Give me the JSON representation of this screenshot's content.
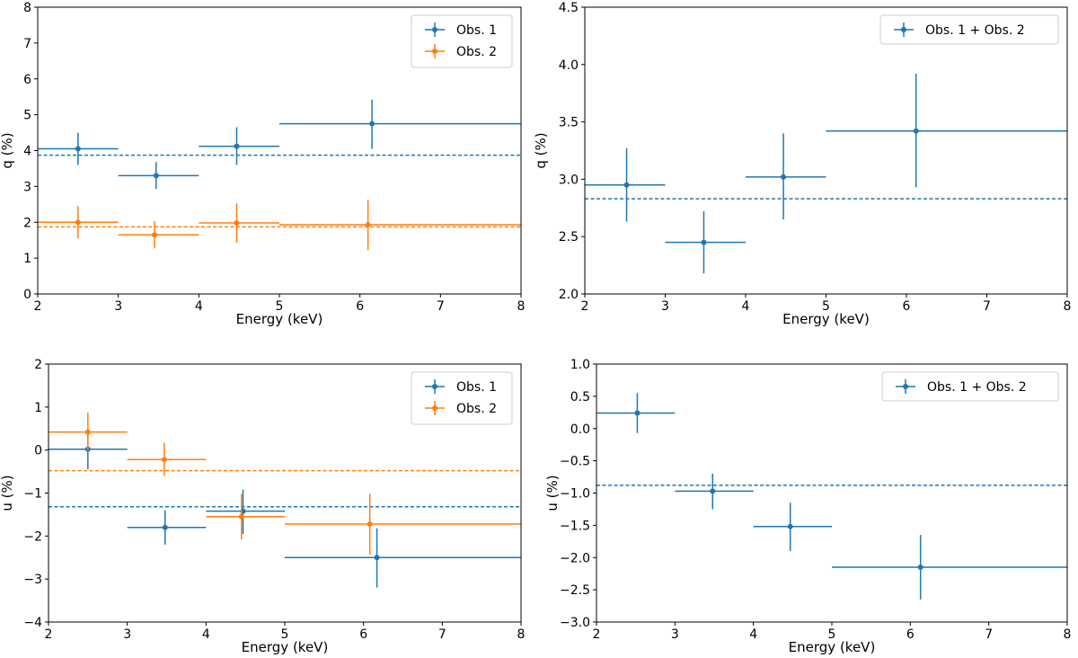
{
  "colors": {
    "obs1": "#1f77b4",
    "obs2": "#ff7f0e",
    "legend_border": "#cccccc"
  },
  "chart_data": [
    {
      "id": "q-separate",
      "type": "scatter",
      "xlabel": "Energy (keV)",
      "ylabel": "q (%)",
      "xlim": [
        2,
        8
      ],
      "ylim": [
        0,
        8
      ],
      "xticks": [
        2,
        3,
        4,
        5,
        6,
        7,
        8
      ],
      "yticks": [
        0,
        1,
        2,
        3,
        4,
        5,
        6,
        7,
        8
      ],
      "ytick_labels": [
        "0",
        "1",
        "2",
        "3",
        "4",
        "5",
        "6",
        "7",
        "8"
      ],
      "legend_position": "top-right",
      "series": [
        {
          "name": "Obs. 1",
          "color": "#1f77b4",
          "mean": 3.87,
          "points": [
            {
              "x": 2.5,
              "xlo": 2,
              "xhi": 3,
              "y": 4.05,
              "ylo": 3.6,
              "yhi": 4.5
            },
            {
              "x": 3.47,
              "xlo": 3,
              "xhi": 4,
              "y": 3.3,
              "ylo": 2.93,
              "yhi": 3.68
            },
            {
              "x": 4.47,
              "xlo": 4,
              "xhi": 5,
              "y": 4.12,
              "ylo": 3.6,
              "yhi": 4.65
            },
            {
              "x": 6.15,
              "xlo": 5,
              "xhi": 8,
              "y": 4.75,
              "ylo": 4.05,
              "yhi": 5.42
            }
          ]
        },
        {
          "name": "Obs. 2",
          "color": "#ff7f0e",
          "mean": 1.87,
          "points": [
            {
              "x": 2.5,
              "xlo": 2,
              "xhi": 3,
              "y": 2.0,
              "ylo": 1.55,
              "yhi": 2.45
            },
            {
              "x": 3.45,
              "xlo": 3,
              "xhi": 4,
              "y": 1.65,
              "ylo": 1.27,
              "yhi": 2.03
            },
            {
              "x": 4.47,
              "xlo": 4,
              "xhi": 5,
              "y": 1.98,
              "ylo": 1.43,
              "yhi": 2.53
            },
            {
              "x": 6.1,
              "xlo": 5,
              "xhi": 8,
              "y": 1.93,
              "ylo": 1.22,
              "yhi": 2.63
            }
          ]
        }
      ]
    },
    {
      "id": "q-combined",
      "type": "scatter",
      "xlabel": "Energy (keV)",
      "ylabel": "q (%)",
      "xlim": [
        2,
        8
      ],
      "ylim": [
        2.0,
        4.5
      ],
      "xticks": [
        2,
        3,
        4,
        5,
        6,
        7,
        8
      ],
      "yticks": [
        2.0,
        2.5,
        3.0,
        3.5,
        4.0,
        4.5
      ],
      "ytick_labels": [
        "2.0",
        "2.5",
        "3.0",
        "3.5",
        "4.0",
        "4.5"
      ],
      "legend_position": "top-right",
      "series": [
        {
          "name": "Obs. 1 + Obs. 2",
          "color": "#1f77b4",
          "mean": 2.83,
          "points": [
            {
              "x": 2.52,
              "xlo": 2,
              "xhi": 3,
              "y": 2.95,
              "ylo": 2.63,
              "yhi": 3.27
            },
            {
              "x": 3.48,
              "xlo": 3,
              "xhi": 4,
              "y": 2.45,
              "ylo": 2.18,
              "yhi": 2.72
            },
            {
              "x": 4.47,
              "xlo": 4,
              "xhi": 5,
              "y": 3.02,
              "ylo": 2.65,
              "yhi": 3.4
            },
            {
              "x": 6.12,
              "xlo": 5,
              "xhi": 8,
              "y": 3.42,
              "ylo": 2.93,
              "yhi": 3.92
            }
          ]
        }
      ]
    },
    {
      "id": "u-separate",
      "type": "scatter",
      "xlabel": "Energy (keV)",
      "ylabel": "u (%)",
      "xlim": [
        2,
        8
      ],
      "ylim": [
        -4,
        2
      ],
      "xticks": [
        2,
        3,
        4,
        5,
        6,
        7,
        8
      ],
      "yticks": [
        -4,
        -3,
        -2,
        -1,
        0,
        1,
        2
      ],
      "ytick_labels": [
        "−4",
        "−3",
        "−2",
        "−1",
        "0",
        "1",
        "2"
      ],
      "legend_position": "top-right",
      "series": [
        {
          "name": "Obs. 1",
          "color": "#1f77b4",
          "mean": -1.32,
          "points": [
            {
              "x": 2.5,
              "xlo": 2,
              "xhi": 3,
              "y": 0.02,
              "ylo": -0.45,
              "yhi": 0.5
            },
            {
              "x": 3.48,
              "xlo": 3,
              "xhi": 4,
              "y": -1.8,
              "ylo": -2.2,
              "yhi": -1.4
            },
            {
              "x": 4.47,
              "xlo": 4,
              "xhi": 5,
              "y": -1.42,
              "ylo": -1.95,
              "yhi": -0.92
            },
            {
              "x": 6.17,
              "xlo": 5,
              "xhi": 8,
              "y": -2.5,
              "ylo": -3.2,
              "yhi": -1.82
            }
          ]
        },
        {
          "name": "Obs. 2",
          "color": "#ff7f0e",
          "mean": -0.48,
          "points": [
            {
              "x": 2.5,
              "xlo": 2,
              "xhi": 3,
              "y": 0.42,
              "ylo": -0.02,
              "yhi": 0.87
            },
            {
              "x": 3.47,
              "xlo": 3,
              "xhi": 4,
              "y": -0.22,
              "ylo": -0.6,
              "yhi": 0.17
            },
            {
              "x": 4.45,
              "xlo": 4,
              "xhi": 5,
              "y": -1.55,
              "ylo": -2.08,
              "yhi": -1.02
            },
            {
              "x": 6.08,
              "xlo": 5,
              "xhi": 8,
              "y": -1.72,
              "ylo": -2.43,
              "yhi": -1.02
            }
          ]
        }
      ]
    },
    {
      "id": "u-combined",
      "type": "scatter",
      "xlabel": "Energy (keV)",
      "ylabel": "u (%)",
      "xlim": [
        2,
        8
      ],
      "ylim": [
        -3.0,
        1.0
      ],
      "xticks": [
        2,
        3,
        4,
        5,
        6,
        7,
        8
      ],
      "yticks": [
        -3.0,
        -2.5,
        -2.0,
        -1.5,
        -1.0,
        -0.5,
        0.0,
        0.5,
        1.0
      ],
      "ytick_labels": [
        "−3.0",
        "−2.5",
        "−2.0",
        "−1.5",
        "−1.0",
        "−0.5",
        "0.0",
        "0.5",
        "1.0"
      ],
      "legend_position": "top-right",
      "series": [
        {
          "name": "Obs. 1 + Obs. 2",
          "color": "#1f77b4",
          "mean": -0.88,
          "points": [
            {
              "x": 2.52,
              "xlo": 2,
              "xhi": 3,
              "y": 0.24,
              "ylo": -0.07,
              "yhi": 0.55
            },
            {
              "x": 3.48,
              "xlo": 3,
              "xhi": 4,
              "y": -0.97,
              "ylo": -1.25,
              "yhi": -0.7
            },
            {
              "x": 4.47,
              "xlo": 4,
              "xhi": 5,
              "y": -1.52,
              "ylo": -1.9,
              "yhi": -1.15
            },
            {
              "x": 6.13,
              "xlo": 5,
              "xhi": 8,
              "y": -2.15,
              "ylo": -2.65,
              "yhi": -1.65
            }
          ]
        }
      ]
    }
  ]
}
